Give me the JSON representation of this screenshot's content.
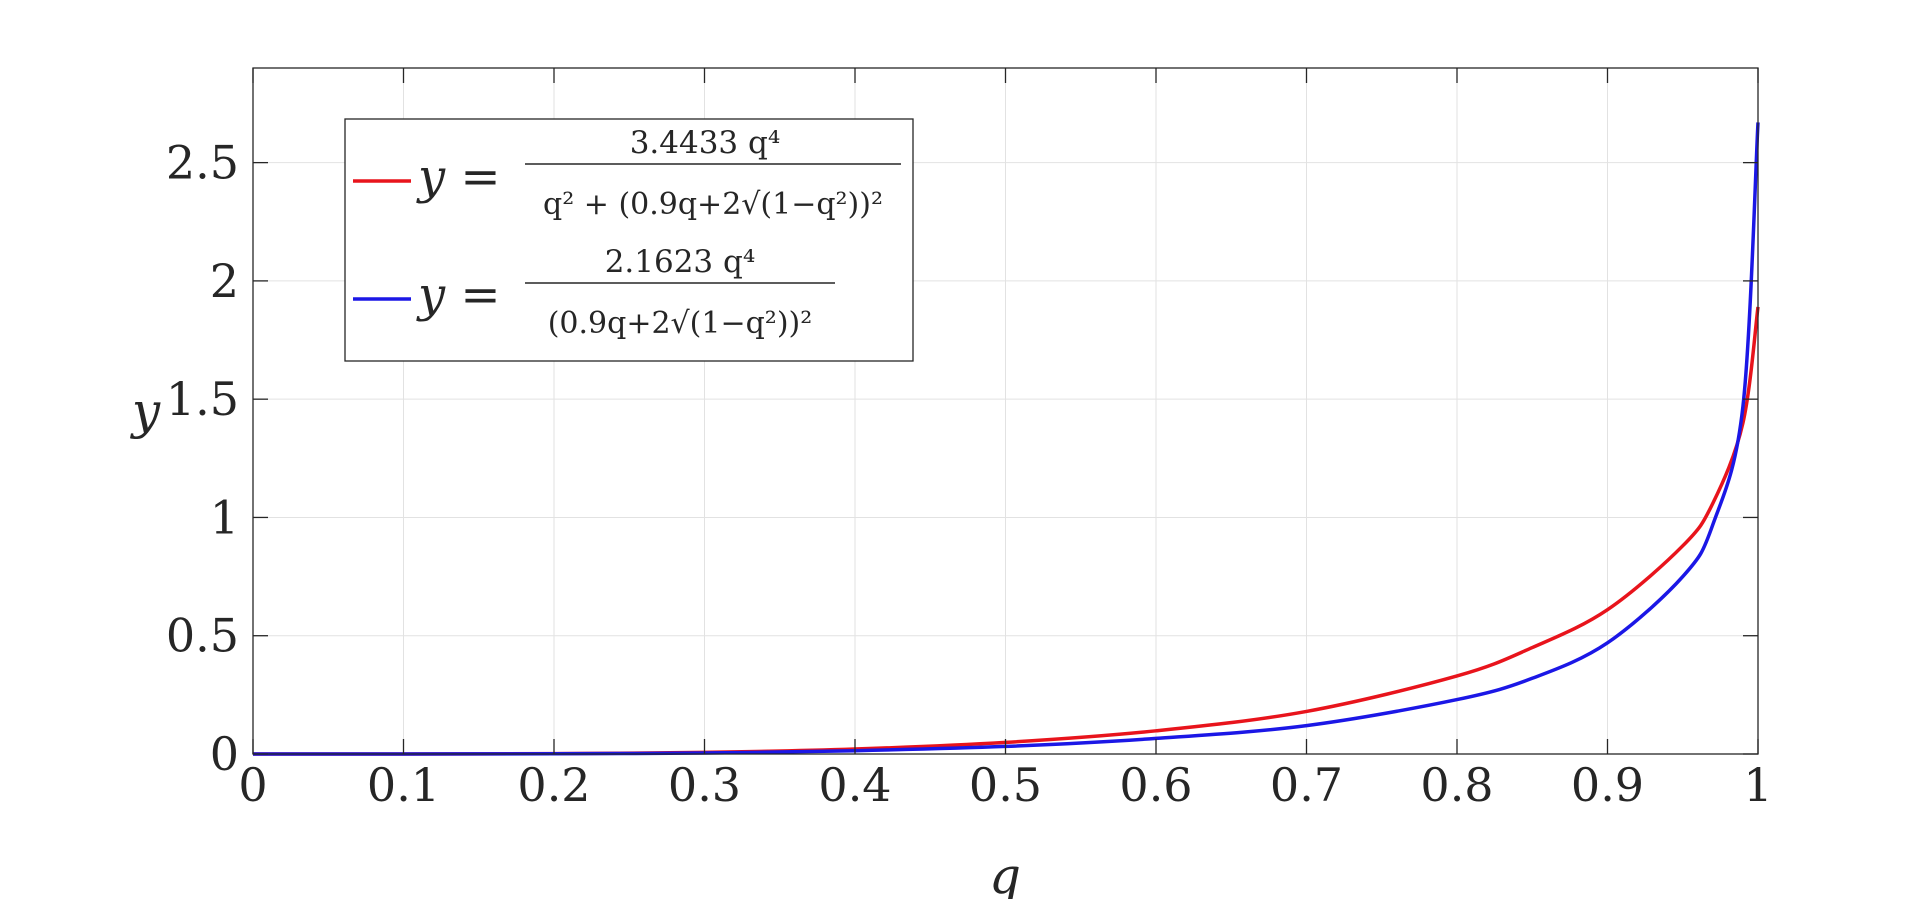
{
  "chart_data": {
    "type": "line",
    "xlabel": "q",
    "ylabel": "y",
    "xlim": [
      0,
      1
    ],
    "ylim": [
      0,
      2.9
    ],
    "xticks": [
      "0",
      "0.1",
      "0.2",
      "0.3",
      "0.4",
      "0.5",
      "0.6",
      "0.7",
      "0.8",
      "0.9",
      "1"
    ],
    "yticks": [
      "0",
      "0.5",
      "1",
      "1.5",
      "2",
      "2.5"
    ],
    "grid": true,
    "legend_position": "top-left",
    "series": [
      {
        "color": "#e8141c",
        "formula": "3.4433 q^4 / (q^2 + (0.9q + 2*sqrt(1-q^2))^2)",
        "x": [
          0,
          0.1,
          0.2,
          0.3,
          0.4,
          0.5,
          0.6,
          0.7,
          0.8,
          0.85,
          0.9,
          0.95,
          0.97,
          0.99,
          1.0
        ],
        "y": [
          0,
          0.0001,
          0.0014,
          0.0067,
          0.021,
          0.049,
          0.098,
          0.18,
          0.33,
          0.45,
          0.61,
          0.88,
          1.06,
          1.4,
          1.89
        ],
        "legend_lhs": "y =",
        "legend_num": "3.4433 q⁴",
        "legend_den": "q² + (0.9q+2√(1−q²))²"
      },
      {
        "color": "#1b17e6",
        "formula": "2.1623 q^4 / (0.9q + 2*sqrt(1-q^2))^2",
        "x": [
          0,
          0.1,
          0.2,
          0.3,
          0.4,
          0.5,
          0.6,
          0.7,
          0.8,
          0.85,
          0.9,
          0.95,
          0.97,
          0.99,
          1.0
        ],
        "y": [
          0,
          0.0001,
          0.0009,
          0.0044,
          0.014,
          0.032,
          0.066,
          0.12,
          0.23,
          0.32,
          0.47,
          0.75,
          0.97,
          1.47,
          2.67
        ],
        "legend_lhs": "y =",
        "legend_num": "2.1623 q⁴",
        "legend_den": "(0.9q+2√(1−q²))²"
      }
    ]
  }
}
